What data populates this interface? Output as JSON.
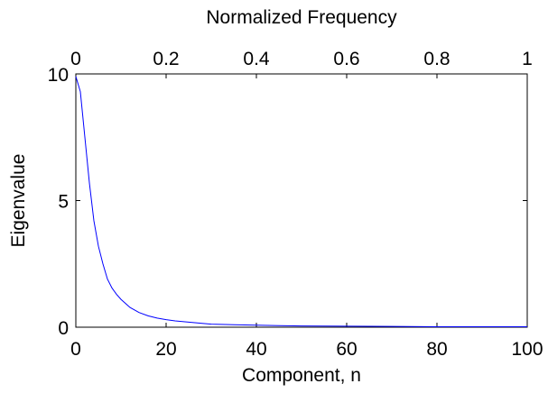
{
  "chart_data": {
    "type": "line",
    "xlabel": "Component, n",
    "ylabel": "Eigenvalue",
    "x2label": "Normalized Frequency",
    "xlim": [
      0,
      100
    ],
    "ylim": [
      0,
      10
    ],
    "x2lim": [
      0,
      1
    ],
    "x_ticks": [
      "0",
      "20",
      "40",
      "60",
      "80",
      "100"
    ],
    "y_ticks": [
      "0",
      "5",
      "10"
    ],
    "x2_ticks": [
      "0",
      "0.2",
      "0.4",
      "0.6",
      "0.8",
      "1"
    ],
    "x_tick_values": [
      0,
      20,
      40,
      60,
      80,
      100
    ],
    "y_tick_values": [
      0,
      5,
      10
    ],
    "x2_tick_values": [
      0,
      0.2,
      0.4,
      0.6,
      0.8,
      1
    ],
    "grid": false,
    "line_color": "#0000ff",
    "series": [
      {
        "x": [
          0,
          1,
          2,
          3,
          4,
          5,
          6,
          7,
          8,
          9,
          10,
          12,
          14,
          16,
          18,
          20,
          22,
          25,
          28,
          30,
          35,
          40,
          45,
          50,
          60,
          70,
          80,
          90,
          100
        ],
        "values": [
          9.9,
          9.3,
          7.5,
          5.7,
          4.2,
          3.2,
          2.5,
          1.9,
          1.55,
          1.3,
          1.1,
          0.78,
          0.58,
          0.45,
          0.36,
          0.3,
          0.25,
          0.2,
          0.15,
          0.12,
          0.1,
          0.08,
          0.06,
          0.05,
          0.04,
          0.03,
          0.02,
          0.02,
          0.02
        ]
      }
    ]
  }
}
